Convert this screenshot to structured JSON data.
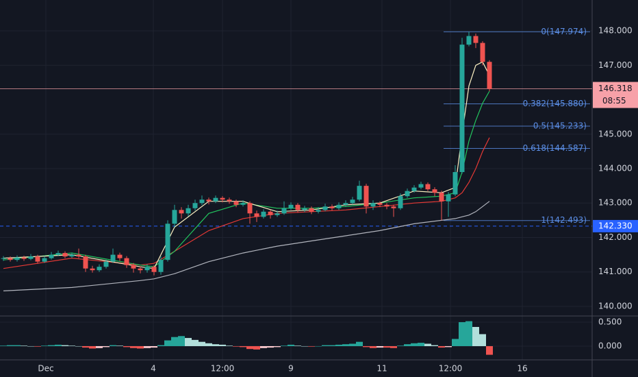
{
  "chart_data": {
    "type": "candlestick",
    "colors": {
      "up": "#26a69a",
      "down": "#ef5350",
      "fib": "#5b8ee6",
      "last": "#f7a1a8",
      "marker": "#2962ff"
    },
    "xlim": [
      -0.5,
      86
    ],
    "xticks": [
      {
        "value": 6.2,
        "label": "Dec"
      },
      {
        "value": 21.9,
        "label": "4"
      },
      {
        "value": 32,
        "label": "12:00"
      },
      {
        "value": 42,
        "label": "9"
      },
      {
        "value": 55.3,
        "label": "11"
      },
      {
        "value": 65.3,
        "label": "12:00"
      },
      {
        "value": 75.8,
        "label": "16"
      }
    ],
    "ylim": [
      139.741,
      148.896
    ],
    "yticks": [
      {
        "value": 148,
        "label": "148.000"
      },
      {
        "value": 147,
        "label": "147.000"
      },
      {
        "value": 145,
        "label": "145.000"
      },
      {
        "value": 144,
        "label": "144.000"
      },
      {
        "value": 143,
        "label": "143.000"
      },
      {
        "value": 142,
        "label": "142.000"
      },
      {
        "value": 141,
        "label": "141.000"
      },
      {
        "value": 140,
        "label": "140.000"
      }
    ],
    "grid": true,
    "candles": [
      [
        141.38,
        141.46,
        141.32,
        141.4
      ],
      [
        141.4,
        141.45,
        141.3,
        141.35
      ],
      [
        141.35,
        141.48,
        141.3,
        141.42
      ],
      [
        141.42,
        141.47,
        141.32,
        141.38
      ],
      [
        141.38,
        141.52,
        141.34,
        141.45
      ],
      [
        141.45,
        141.5,
        141.24,
        141.3
      ],
      [
        141.3,
        141.46,
        141.26,
        141.4
      ],
      [
        141.4,
        141.58,
        141.36,
        141.5
      ],
      [
        141.5,
        141.62,
        141.46,
        141.55
      ],
      [
        141.55,
        141.6,
        141.4,
        141.45
      ],
      [
        141.45,
        141.56,
        141.4,
        141.5
      ],
      [
        141.5,
        141.68,
        141.4,
        141.45
      ],
      [
        141.45,
        141.5,
        141.0,
        141.1
      ],
      [
        141.1,
        141.18,
        140.98,
        141.05
      ],
      [
        141.05,
        141.22,
        141.0,
        141.15
      ],
      [
        141.15,
        141.36,
        141.1,
        141.3
      ],
      [
        141.3,
        141.68,
        141.26,
        141.5
      ],
      [
        141.5,
        141.56,
        141.32,
        141.4
      ],
      [
        141.4,
        141.46,
        141.12,
        141.2
      ],
      [
        141.2,
        141.26,
        140.98,
        141.1
      ],
      [
        141.1,
        141.16,
        140.96,
        141.05
      ],
      [
        141.05,
        141.22,
        140.98,
        141.15
      ],
      [
        141.15,
        141.2,
        140.9,
        141.0
      ],
      [
        141.0,
        141.45,
        140.92,
        141.35
      ],
      [
        141.35,
        142.5,
        141.3,
        142.4
      ],
      [
        142.4,
        142.95,
        142.3,
        142.8
      ],
      [
        142.8,
        142.88,
        142.55,
        142.7
      ],
      [
        142.7,
        142.95,
        142.62,
        142.85
      ],
      [
        142.85,
        143.1,
        142.78,
        143.0
      ],
      [
        143.0,
        143.22,
        142.94,
        143.1
      ],
      [
        143.1,
        143.16,
        142.96,
        143.05
      ],
      [
        143.05,
        143.22,
        143.0,
        143.15
      ],
      [
        143.15,
        143.2,
        143.02,
        143.1
      ],
      [
        143.1,
        143.16,
        142.98,
        143.05
      ],
      [
        143.05,
        143.1,
        142.88,
        142.95
      ],
      [
        142.95,
        143.08,
        142.9,
        143.0
      ],
      [
        143.0,
        143.05,
        142.4,
        142.7
      ],
      [
        142.7,
        142.78,
        142.45,
        142.6
      ],
      [
        142.6,
        142.82,
        142.55,
        142.75
      ],
      [
        142.75,
        142.8,
        142.55,
        142.65
      ],
      [
        142.65,
        142.78,
        142.6,
        142.7
      ],
      [
        142.7,
        143.05,
        142.66,
        142.85
      ],
      [
        142.85,
        143.02,
        142.8,
        142.95
      ],
      [
        142.95,
        143.0,
        142.72,
        142.8
      ],
      [
        142.8,
        142.92,
        142.74,
        142.85
      ],
      [
        142.85,
        142.9,
        142.68,
        142.75
      ],
      [
        142.75,
        142.88,
        142.7,
        142.8
      ],
      [
        142.8,
        142.98,
        142.76,
        142.9
      ],
      [
        142.9,
        142.96,
        142.78,
        142.85
      ],
      [
        142.85,
        143.02,
        142.8,
        142.95
      ],
      [
        142.95,
        143.08,
        142.9,
        143.0
      ],
      [
        143.0,
        143.18,
        142.96,
        143.1
      ],
      [
        143.1,
        143.65,
        143.05,
        143.5
      ],
      [
        143.5,
        143.56,
        142.7,
        142.9
      ],
      [
        142.9,
        143.08,
        142.8,
        143.0
      ],
      [
        143.0,
        143.05,
        142.88,
        142.95
      ],
      [
        142.95,
        143.0,
        142.82,
        142.9
      ],
      [
        142.9,
        142.95,
        142.6,
        142.85
      ],
      [
        142.85,
        143.28,
        142.8,
        143.2
      ],
      [
        143.2,
        143.42,
        143.15,
        143.35
      ],
      [
        143.35,
        143.52,
        143.3,
        143.45
      ],
      [
        143.45,
        143.62,
        143.4,
        143.55
      ],
      [
        143.55,
        143.6,
        143.35,
        143.4
      ],
      [
        143.4,
        143.46,
        143.2,
        143.3
      ],
      [
        143.3,
        143.36,
        142.5,
        143.05
      ],
      [
        143.05,
        143.32,
        142.6,
        143.25
      ],
      [
        143.25,
        144.1,
        143.2,
        143.9
      ],
      [
        143.9,
        147.8,
        143.85,
        147.6
      ],
      [
        147.6,
        147.974,
        147.55,
        147.85
      ],
      [
        147.85,
        147.92,
        147.5,
        147.65
      ],
      [
        147.65,
        147.7,
        147.0,
        147.1
      ],
      [
        147.1,
        147.15,
        146.25,
        146.318
      ]
    ],
    "overlays": [
      {
        "color": "#b2b5be",
        "x": [
          0,
          10,
          20,
          22,
          25,
          30,
          35,
          40,
          45,
          50,
          55,
          60,
          64,
          66,
          67,
          68,
          69,
          70,
          71
        ],
        "values": [
          140.45,
          140.55,
          140.75,
          140.8,
          140.95,
          141.3,
          141.55,
          141.75,
          141.9,
          142.05,
          142.2,
          142.4,
          142.5,
          142.55,
          142.6,
          142.65,
          142.75,
          142.9,
          143.05
        ]
      },
      {
        "color": "#e53935",
        "x": [
          0,
          10,
          20,
          22,
          25,
          30,
          35,
          40,
          45,
          50,
          55,
          60,
          64,
          66,
          67,
          68,
          69,
          70,
          71
        ],
        "values": [
          141.1,
          141.4,
          141.2,
          141.25,
          141.6,
          142.2,
          142.55,
          142.7,
          142.75,
          142.8,
          142.9,
          143.0,
          143.05,
          143.15,
          143.3,
          143.6,
          144.0,
          144.5,
          144.9
        ]
      },
      {
        "color": "#22c55e",
        "x": [
          0,
          10,
          20,
          22,
          25,
          30,
          35,
          40,
          45,
          50,
          55,
          60,
          64,
          66,
          67,
          68,
          69,
          70,
          71
        ],
        "values": [
          141.35,
          141.55,
          141.2,
          141.15,
          141.6,
          142.7,
          143.0,
          142.85,
          142.85,
          142.9,
          143.0,
          143.15,
          143.2,
          143.3,
          143.9,
          144.8,
          145.4,
          145.9,
          146.25
        ]
      },
      {
        "color": "#fff3c4",
        "x": [
          0,
          10,
          20,
          22,
          25,
          30,
          35,
          40,
          45,
          50,
          55,
          60,
          64,
          66,
          67,
          68,
          69,
          70,
          71
        ],
        "values": [
          141.4,
          141.5,
          141.15,
          141.1,
          142.3,
          143.05,
          143.05,
          142.75,
          142.8,
          142.95,
          143.0,
          143.35,
          143.3,
          143.45,
          145.0,
          146.4,
          147.0,
          147.1,
          146.7
        ]
      }
    ],
    "fib_start": 64.3,
    "fib_levels": [
      {
        "value": 147.974,
        "label": "0(147.974)"
      },
      {
        "value": 145.88,
        "label": "0.382(145.880)"
      },
      {
        "value": 145.233,
        "label": "0.5(145.233)"
      },
      {
        "value": 144.587,
        "label": "0.618(144.587)"
      },
      {
        "value": 142.493,
        "label": "1(142.493)"
      }
    ],
    "last_price": {
      "value": 146.318,
      "label": "146.318",
      "countdown": "08:55"
    },
    "marker_line": {
      "value": 142.33,
      "label": "142.330"
    },
    "oscillator": {
      "ylim": [
        -0.286,
        0.614
      ],
      "yticks": [
        {
          "value": 0.5,
          "label": "0.500"
        },
        {
          "value": 0,
          "label": "0.000"
        }
      ],
      "colors": [
        "#26a69a",
        "#b2dfdb",
        "#ef5350",
        "#ffcdd2"
      ],
      "values": [
        0.01,
        0.02,
        0.02,
        0.01,
        0.0,
        -0.01,
        0.01,
        0.02,
        0.03,
        0.02,
        0.01,
        0.0,
        -0.03,
        -0.05,
        -0.04,
        -0.02,
        0.02,
        0.01,
        -0.02,
        -0.04,
        -0.05,
        -0.04,
        -0.03,
        0.02,
        0.12,
        0.19,
        0.21,
        0.17,
        0.13,
        0.09,
        0.06,
        0.04,
        0.03,
        0.01,
        -0.01,
        -0.02,
        -0.06,
        -0.07,
        -0.04,
        -0.03,
        -0.02,
        0.01,
        0.03,
        0.01,
        0.0,
        -0.01,
        0.0,
        0.02,
        0.02,
        0.03,
        0.04,
        0.05,
        0.09,
        -0.02,
        -0.04,
        -0.03,
        -0.03,
        -0.04,
        0.01,
        0.04,
        0.06,
        0.07,
        0.05,
        0.02,
        -0.03,
        -0.02,
        0.15,
        0.5,
        0.52,
        0.4,
        0.25,
        -0.18
      ]
    }
  }
}
